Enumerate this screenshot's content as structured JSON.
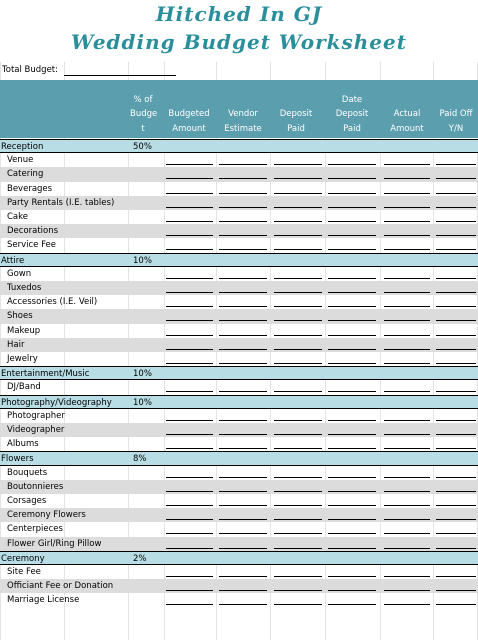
{
  "title": {
    "line1": "Hitched In GJ",
    "line2": "Wedding Budget Worksheet"
  },
  "total_budget_label": "Total Budget:",
  "columns": [
    {
      "lines": [
        "% of",
        "Budge",
        "t"
      ]
    },
    {
      "lines": [
        "Budgeted",
        "Amount"
      ]
    },
    {
      "lines": [
        "Vendor",
        "Estimate"
      ]
    },
    {
      "lines": [
        "Deposit",
        "Paid"
      ]
    },
    {
      "lines": [
        "Date",
        "Deposit",
        "Paid"
      ]
    },
    {
      "lines": [
        "Actual",
        "Amount"
      ]
    },
    {
      "lines": [
        "Paid Off",
        "Y/N"
      ]
    }
  ],
  "sections": [
    {
      "name": "Reception",
      "percent": "50%",
      "items": [
        "Venue",
        "Catering",
        "Beverages",
        "Party Rentals (I.E. tables)",
        "Cake",
        "Decorations",
        "Service Fee"
      ]
    },
    {
      "name": "Attire",
      "percent": "10%",
      "items": [
        "Gown",
        "Tuxedos",
        "Accessories (I.E. Veil)",
        "Shoes",
        "Makeup",
        "Hair",
        "Jewelry"
      ]
    },
    {
      "name": "Entertainment/Music",
      "percent": "10%",
      "items": [
        "DJ/Band"
      ]
    },
    {
      "name": "Photography/Videography",
      "percent": "10%",
      "items": [
        "Photographer",
        "Videographer",
        "Albums"
      ]
    },
    {
      "name": "Flowers",
      "percent": "8%",
      "items": [
        "Bouquets",
        "Boutonnieres",
        "Corsages",
        "Ceremony Flowers",
        "Centerpieces",
        "Flower Girl/Ring Pillow"
      ]
    },
    {
      "name": "Ceremony",
      "percent": "2%",
      "items": [
        "Site Fee",
        "Officiant Fee or Donation",
        "Marriage License"
      ]
    }
  ],
  "colors": {
    "title": "#2a8f9a",
    "header_bg": "#5b9fae",
    "category_bg": "#b8dde5",
    "alt_row_bg": "#dcdcdc"
  }
}
